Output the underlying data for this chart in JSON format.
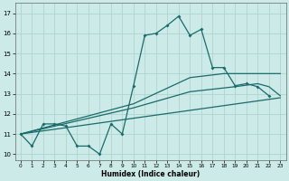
{
  "xlabel": "Humidex (Indice chaleur)",
  "xlim": [
    -0.5,
    23.5
  ],
  "ylim": [
    9.7,
    17.5
  ],
  "yticks": [
    10,
    11,
    12,
    13,
    14,
    15,
    16,
    17
  ],
  "xticks": [
    0,
    1,
    2,
    3,
    4,
    5,
    6,
    7,
    8,
    9,
    10,
    11,
    12,
    13,
    14,
    15,
    16,
    17,
    18,
    19,
    20,
    21,
    22,
    23
  ],
  "background_color": "#cceae7",
  "grid_color": "#b0d4d0",
  "line_color": "#1a6b6b",
  "line_width": 0.9,
  "marker_size": 2.0,
  "jagged_line": {
    "x": [
      0,
      1,
      2,
      3,
      4,
      5,
      6,
      7,
      8,
      9,
      10,
      11,
      12,
      13,
      14,
      15,
      16,
      17,
      18,
      19,
      20,
      21,
      22
    ],
    "y": [
      11.0,
      10.4,
      11.5,
      11.5,
      11.4,
      10.4,
      10.4,
      10.0,
      11.5,
      11.0,
      13.4,
      15.9,
      16.0,
      16.4,
      16.85,
      15.9,
      16.2,
      14.3,
      14.3,
      13.4,
      13.5,
      13.35,
      12.9
    ]
  },
  "smooth_line1": {
    "x": [
      0,
      23
    ],
    "y": [
      11.0,
      12.8
    ]
  },
  "smooth_line2": {
    "x": [
      0,
      10,
      15,
      19,
      21,
      22,
      23
    ],
    "y": [
      11.0,
      12.3,
      13.1,
      13.35,
      13.5,
      13.35,
      12.9
    ]
  },
  "smooth_line3": {
    "x": [
      0,
      10,
      15,
      18,
      23
    ],
    "y": [
      11.0,
      12.5,
      13.8,
      14.0,
      14.0
    ]
  }
}
